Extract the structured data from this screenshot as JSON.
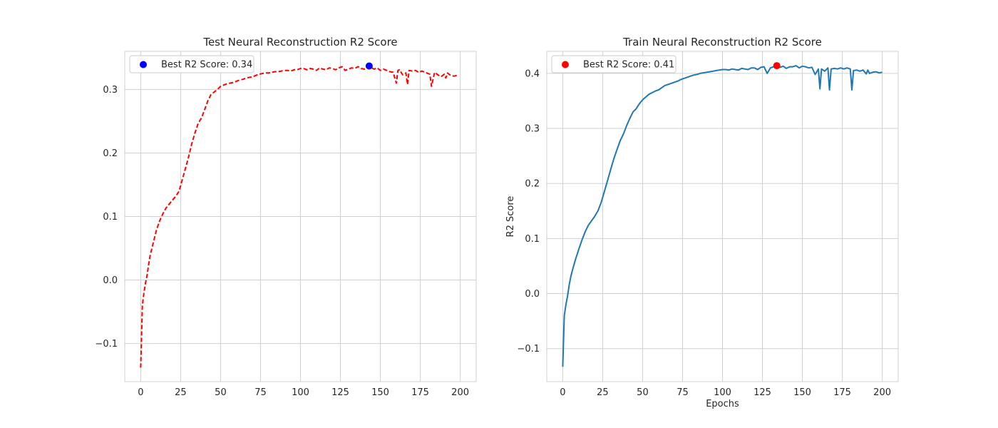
{
  "chart_data": [
    {
      "type": "line",
      "title": "Test Neural Reconstruction R2 Score",
      "xlabel": "",
      "ylabel": "",
      "xlim": [
        -10,
        210
      ],
      "ylim": [
        -0.16,
        0.36
      ],
      "xticks": [
        0,
        25,
        50,
        75,
        100,
        125,
        150,
        175,
        200
      ],
      "xtick_labels": [
        "0",
        "25",
        "50",
        "75",
        "100",
        "125",
        "150",
        "175",
        "200"
      ],
      "yticks": [
        -0.1,
        0.0,
        0.1,
        0.2,
        0.3
      ],
      "ytick_labels": [
        "−0.1",
        "0.0",
        "0.1",
        "0.2",
        "0.3"
      ],
      "grid": true,
      "legend_position": "top-left",
      "legend_label": "Best R2 Score: 0.34",
      "series": [
        {
          "color": "#ff0000",
          "style": "dashed",
          "x": [
            0,
            1,
            2,
            3,
            4,
            5,
            6,
            8,
            10,
            12,
            14,
            16,
            18,
            20,
            22,
            24,
            26,
            28,
            30,
            32,
            34,
            36,
            38,
            40,
            42,
            44,
            46,
            48,
            50,
            52,
            54,
            56,
            58,
            60,
            62,
            64,
            66,
            68,
            70,
            72,
            74,
            76,
            78,
            80,
            82,
            84,
            86,
            88,
            90,
            92,
            94,
            96,
            98,
            100,
            102,
            104,
            106,
            108,
            110,
            112,
            114,
            116,
            118,
            120,
            122,
            124,
            126,
            128,
            130,
            132,
            134,
            136,
            138,
            140,
            142,
            143,
            144,
            146,
            148,
            150,
            152,
            154,
            156,
            158,
            160,
            161,
            162,
            164,
            166,
            167,
            168,
            170,
            172,
            174,
            176,
            178,
            180,
            181,
            182,
            184,
            186,
            188,
            190,
            191,
            192,
            194,
            196,
            198
          ],
          "y": [
            -0.138,
            -0.04,
            -0.02,
            -0.005,
            0.008,
            0.025,
            0.04,
            0.06,
            0.08,
            0.094,
            0.105,
            0.114,
            0.12,
            0.126,
            0.132,
            0.14,
            0.158,
            0.176,
            0.194,
            0.215,
            0.232,
            0.247,
            0.255,
            0.268,
            0.282,
            0.292,
            0.296,
            0.3,
            0.305,
            0.307,
            0.309,
            0.31,
            0.311,
            0.313,
            0.315,
            0.316,
            0.318,
            0.319,
            0.32,
            0.322,
            0.324,
            0.325,
            0.326,
            0.326,
            0.327,
            0.328,
            0.328,
            0.329,
            0.33,
            0.33,
            0.329,
            0.331,
            0.331,
            0.333,
            0.333,
            0.331,
            0.333,
            0.332,
            0.33,
            0.334,
            0.332,
            0.331,
            0.334,
            0.333,
            0.331,
            0.334,
            0.336,
            0.33,
            0.332,
            0.334,
            0.333,
            0.336,
            0.333,
            0.332,
            0.334,
            0.337,
            0.335,
            0.332,
            0.334,
            0.33,
            0.332,
            0.33,
            0.328,
            0.327,
            0.31,
            0.33,
            0.331,
            0.323,
            0.326,
            0.308,
            0.33,
            0.329,
            0.33,
            0.327,
            0.329,
            0.327,
            0.325,
            0.324,
            0.305,
            0.327,
            0.323,
            0.32,
            0.324,
            0.318,
            0.326,
            0.322,
            0.321,
            0.322
          ]
        }
      ],
      "highlight": {
        "x": 143,
        "y": 0.337,
        "color": "#0000ff"
      }
    },
    {
      "type": "line",
      "title": "Train Neural Reconstruction R2 Score",
      "xlabel": "Epochs",
      "ylabel": "R2 Score",
      "xlim": [
        -10,
        210
      ],
      "ylim": [
        -0.16,
        0.44
      ],
      "xticks": [
        0,
        25,
        50,
        75,
        100,
        125,
        150,
        175,
        200
      ],
      "xtick_labels": [
        "0",
        "25",
        "50",
        "75",
        "100",
        "125",
        "150",
        "175",
        "200"
      ],
      "yticks": [
        -0.1,
        0.0,
        0.1,
        0.2,
        0.3,
        0.4
      ],
      "ytick_labels": [
        "−0.1",
        "0.0",
        "0.1",
        "0.2",
        "0.3",
        "0.4"
      ],
      "grid": true,
      "legend_position": "top-left",
      "legend_label": "Best R2 Score: 0.41",
      "series": [
        {
          "color": "#1f77b4",
          "style": "solid",
          "x": [
            0,
            1,
            2,
            3,
            4,
            5,
            6,
            8,
            10,
            12,
            14,
            16,
            18,
            20,
            22,
            24,
            26,
            28,
            30,
            32,
            34,
            36,
            38,
            40,
            42,
            44,
            46,
            48,
            50,
            52,
            54,
            56,
            58,
            60,
            62,
            64,
            66,
            68,
            70,
            72,
            74,
            76,
            78,
            80,
            82,
            84,
            86,
            88,
            90,
            92,
            94,
            96,
            98,
            100,
            102,
            104,
            106,
            108,
            110,
            112,
            114,
            116,
            118,
            120,
            122,
            124,
            126,
            128,
            130,
            132,
            134,
            136,
            138,
            140,
            142,
            144,
            146,
            148,
            150,
            152,
            154,
            156,
            158,
            160,
            161,
            162,
            164,
            166,
            167,
            168,
            170,
            172,
            174,
            176,
            178,
            180,
            181,
            182,
            184,
            186,
            188,
            190,
            191,
            192,
            194,
            196,
            198,
            200
          ],
          "y": [
            -0.133,
            -0.04,
            -0.02,
            -0.005,
            0.015,
            0.03,
            0.042,
            0.062,
            0.08,
            0.097,
            0.112,
            0.124,
            0.132,
            0.14,
            0.15,
            0.165,
            0.185,
            0.205,
            0.225,
            0.245,
            0.262,
            0.278,
            0.29,
            0.305,
            0.318,
            0.33,
            0.336,
            0.345,
            0.352,
            0.357,
            0.362,
            0.365,
            0.368,
            0.37,
            0.374,
            0.378,
            0.38,
            0.382,
            0.384,
            0.386,
            0.389,
            0.391,
            0.393,
            0.395,
            0.397,
            0.398,
            0.4,
            0.401,
            0.402,
            0.403,
            0.404,
            0.405,
            0.406,
            0.407,
            0.407,
            0.406,
            0.408,
            0.407,
            0.406,
            0.409,
            0.408,
            0.407,
            0.41,
            0.41,
            0.407,
            0.411,
            0.412,
            0.4,
            0.41,
            0.412,
            0.414,
            0.411,
            0.413,
            0.409,
            0.412,
            0.412,
            0.414,
            0.41,
            0.413,
            0.412,
            0.41,
            0.411,
            0.398,
            0.408,
            0.372,
            0.408,
            0.404,
            0.41,
            0.37,
            0.408,
            0.409,
            0.408,
            0.41,
            0.408,
            0.41,
            0.408,
            0.37,
            0.405,
            0.406,
            0.404,
            0.406,
            0.399,
            0.406,
            0.4,
            0.402,
            0.403,
            0.401,
            0.402
          ]
        }
      ],
      "highlight": {
        "x": 134,
        "y": 0.414,
        "color": "#ff0000"
      }
    }
  ]
}
